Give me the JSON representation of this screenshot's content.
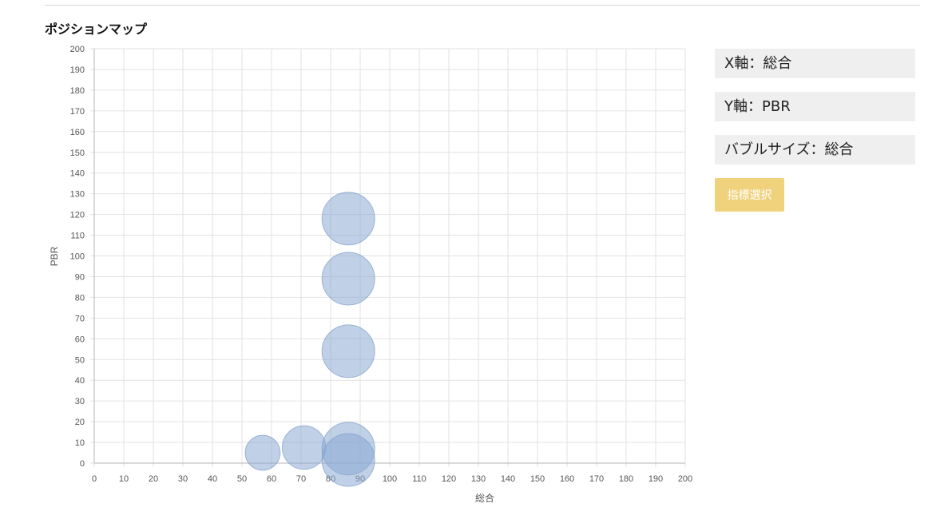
{
  "section_title": "ポジションマップ",
  "panel": {
    "x_axis_label": "X軸：総合",
    "y_axis_label": "Y軸：PBR",
    "bubble_size_label": "バブルサイズ：総合",
    "select_button_label": "指標選択"
  },
  "colors": {
    "bubble_fill": "#8aa9d4",
    "bubble_stroke": "#7e9cc8",
    "grid": "#e2e2e2",
    "axis": "#b5b5b5",
    "button": "#f0d27c"
  },
  "chart_data": {
    "type": "scatter",
    "title": "",
    "xlabel": "総合",
    "ylabel": "PBR",
    "xlim": [
      0,
      200
    ],
    "ylim": [
      0,
      200
    ],
    "x_ticks": [
      0,
      10,
      20,
      30,
      40,
      50,
      60,
      70,
      80,
      90,
      100,
      110,
      120,
      130,
      140,
      150,
      160,
      170,
      180,
      190,
      200
    ],
    "y_ticks": [
      0,
      10,
      20,
      30,
      40,
      50,
      60,
      70,
      80,
      90,
      100,
      110,
      120,
      130,
      140,
      150,
      160,
      170,
      180,
      190,
      200
    ],
    "grid": true,
    "points": [
      {
        "x": 57,
        "y": 5,
        "size": 57
      },
      {
        "x": 71,
        "y": 7.5,
        "size": 71
      },
      {
        "x": 86,
        "y": 118,
        "size": 86
      },
      {
        "x": 86,
        "y": 89,
        "size": 86
      },
      {
        "x": 86,
        "y": 54,
        "size": 86
      },
      {
        "x": 86,
        "y": 7,
        "size": 86
      },
      {
        "x": 86,
        "y": 1.5,
        "size": 86
      }
    ]
  }
}
